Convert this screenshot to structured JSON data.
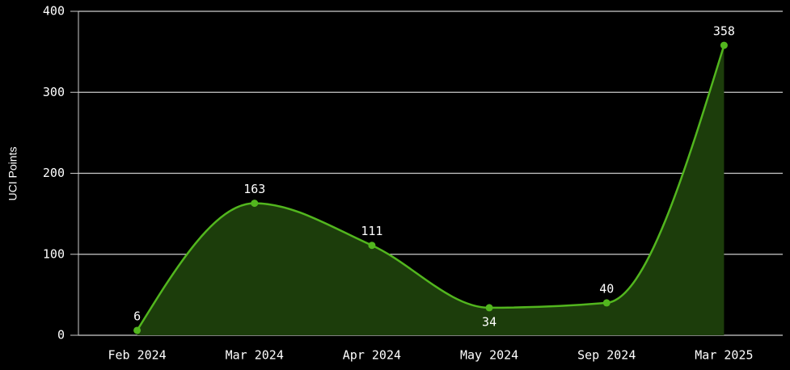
{
  "chart_data": {
    "type": "area",
    "y_label": "UCI Points",
    "categories": [
      "Feb 2024",
      "Mar 2024",
      "Apr 2024",
      "May 2024",
      "Sep 2024",
      "Mar 2025"
    ],
    "values": [
      6,
      163,
      111,
      34,
      40,
      358
    ],
    "color": "#52b61e",
    "fill": "#1c3d0b",
    "ylim": [
      0,
      400
    ],
    "yticks": [
      0,
      100,
      200,
      300,
      400
    ],
    "grid": true
  }
}
